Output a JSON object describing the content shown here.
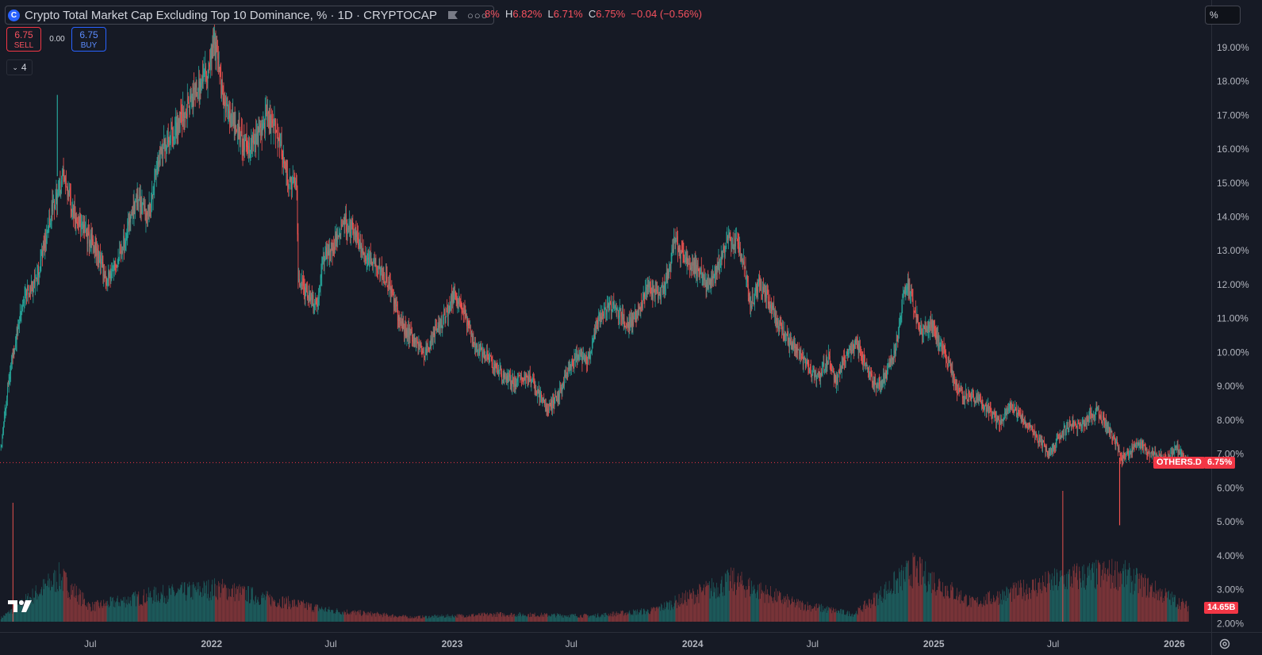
{
  "header": {
    "title": "Crypto Total Market Cap Excluding Top 10 Dominance, % · 1D · CRYPTOCAP",
    "logo_icon": "cryptocap-logo-icon",
    "ohlc_partial": "8%",
    "high_label": "H",
    "high": "6.82%",
    "low_label": "L",
    "low": "6.71%",
    "close_label": "C",
    "close": "6.75%",
    "change": "−0.04 (−0.56%)"
  },
  "trade": {
    "sell_price": "6.75",
    "sell_label": "SELL",
    "spread": "0.00",
    "buy_price": "6.75",
    "buy_label": "BUY"
  },
  "indicators_count": "4",
  "unit_button": "%",
  "last_price_tag": {
    "symbol": "OTHERS.D",
    "value": "6.75%"
  },
  "volume_tag": "14.65B",
  "colors": {
    "up": "#26a69a",
    "down": "#ef5350",
    "background": "#161a25",
    "last_price": "#f23645"
  },
  "chart_data": {
    "type": "candlestick",
    "symbol": "OTHERS.D",
    "title": "Crypto Total Market Cap Excluding Top 10 Dominance, %",
    "interval": "1D",
    "y_axis": {
      "ticks": [
        "2.00%",
        "3.00%",
        "4.00%",
        "5.00%",
        "6.00%",
        "7.00%",
        "8.00%",
        "9.00%",
        "10.00%",
        "11.00%",
        "12.00%",
        "13.00%",
        "14.00%",
        "15.00%",
        "16.00%",
        "17.00%",
        "18.00%",
        "19.00%"
      ],
      "ylim": [
        1.75,
        20.4
      ],
      "scale": "linear"
    },
    "x_axis": {
      "ticks": [
        "Jul",
        "2022",
        "Jul",
        "2023",
        "Jul",
        "2024",
        "Jul",
        "2025",
        "Jul",
        "2026"
      ],
      "range": [
        "2021-02-14",
        "2026-02-26"
      ]
    },
    "last_value": 6.75,
    "price_path": [
      {
        "date": "2021-02-15",
        "value": 7.2
      },
      {
        "date": "2021-03-01",
        "value": 9.5
      },
      {
        "date": "2021-03-20",
        "value": 11.5
      },
      {
        "date": "2021-04-10",
        "value": 12.2
      },
      {
        "date": "2021-05-01",
        "value": 14.0
      },
      {
        "date": "2021-05-20",
        "value": 15.2
      },
      {
        "date": "2021-06-05",
        "value": 14.2
      },
      {
        "date": "2021-06-20",
        "value": 13.6
      },
      {
        "date": "2021-07-10",
        "value": 13.0
      },
      {
        "date": "2021-07-25",
        "value": 12.1
      },
      {
        "date": "2021-08-10",
        "value": 12.6
      },
      {
        "date": "2021-08-25",
        "value": 13.6
      },
      {
        "date": "2021-09-10",
        "value": 14.5
      },
      {
        "date": "2021-09-25",
        "value": 14.0
      },
      {
        "date": "2021-10-10",
        "value": 15.5
      },
      {
        "date": "2021-10-25",
        "value": 16.3
      },
      {
        "date": "2021-11-10",
        "value": 16.7
      },
      {
        "date": "2021-11-25",
        "value": 17.2
      },
      {
        "date": "2021-12-10",
        "value": 17.8
      },
      {
        "date": "2021-12-25",
        "value": 18.3
      },
      {
        "date": "2022-01-05",
        "value": 19.3
      },
      {
        "date": "2022-01-20",
        "value": 17.2
      },
      {
        "date": "2022-02-05",
        "value": 16.8
      },
      {
        "date": "2022-02-20",
        "value": 16.0
      },
      {
        "date": "2022-03-10",
        "value": 16.3
      },
      {
        "date": "2022-03-25",
        "value": 16.9
      },
      {
        "date": "2022-04-10",
        "value": 16.5
      },
      {
        "date": "2022-04-28",
        "value": 15.0
      },
      {
        "date": "2022-05-10",
        "value": 14.9
      },
      {
        "date": "2022-05-12",
        "value": 12.2
      },
      {
        "date": "2022-05-25",
        "value": 11.8
      },
      {
        "date": "2022-06-10",
        "value": 11.4
      },
      {
        "date": "2022-06-20",
        "value": 12.9
      },
      {
        "date": "2022-07-05",
        "value": 13.1
      },
      {
        "date": "2022-07-20",
        "value": 13.9
      },
      {
        "date": "2022-08-05",
        "value": 13.5
      },
      {
        "date": "2022-08-20",
        "value": 12.9
      },
      {
        "date": "2022-09-05",
        "value": 12.7
      },
      {
        "date": "2022-09-25",
        "value": 12.1
      },
      {
        "date": "2022-10-15",
        "value": 10.8
      },
      {
        "date": "2022-11-05",
        "value": 10.4
      },
      {
        "date": "2022-11-20",
        "value": 9.9
      },
      {
        "date": "2022-12-05",
        "value": 10.6
      },
      {
        "date": "2022-12-20",
        "value": 11.0
      },
      {
        "date": "2023-01-05",
        "value": 11.8
      },
      {
        "date": "2023-01-20",
        "value": 11.1
      },
      {
        "date": "2023-02-05",
        "value": 10.2
      },
      {
        "date": "2023-02-25",
        "value": 9.8
      },
      {
        "date": "2023-03-15",
        "value": 9.4
      },
      {
        "date": "2023-04-05",
        "value": 9.1
      },
      {
        "date": "2023-04-25",
        "value": 9.3
      },
      {
        "date": "2023-05-10",
        "value": 8.9
      },
      {
        "date": "2023-05-25",
        "value": 8.3
      },
      {
        "date": "2023-06-10",
        "value": 8.7
      },
      {
        "date": "2023-06-25",
        "value": 9.4
      },
      {
        "date": "2023-07-10",
        "value": 9.9
      },
      {
        "date": "2023-07-25",
        "value": 9.7
      },
      {
        "date": "2023-08-10",
        "value": 10.9
      },
      {
        "date": "2023-08-25",
        "value": 11.4
      },
      {
        "date": "2023-09-10",
        "value": 11.2
      },
      {
        "date": "2023-09-25",
        "value": 10.8
      },
      {
        "date": "2023-10-10",
        "value": 11.2
      },
      {
        "date": "2023-10-25",
        "value": 11.9
      },
      {
        "date": "2023-11-10",
        "value": 11.6
      },
      {
        "date": "2023-11-25",
        "value": 12.3
      },
      {
        "date": "2023-12-05",
        "value": 13.4
      },
      {
        "date": "2023-12-15",
        "value": 12.8
      },
      {
        "date": "2024-01-05",
        "value": 12.5
      },
      {
        "date": "2024-01-25",
        "value": 12.0
      },
      {
        "date": "2024-02-10",
        "value": 12.6
      },
      {
        "date": "2024-02-25",
        "value": 13.4
      },
      {
        "date": "2024-03-10",
        "value": 13.1
      },
      {
        "date": "2024-03-20",
        "value": 12.5
      },
      {
        "date": "2024-03-28",
        "value": 11.4
      },
      {
        "date": "2024-04-10",
        "value": 12.0
      },
      {
        "date": "2024-04-25",
        "value": 11.6
      },
      {
        "date": "2024-05-10",
        "value": 10.8
      },
      {
        "date": "2024-05-25",
        "value": 10.3
      },
      {
        "date": "2024-06-10",
        "value": 10.1
      },
      {
        "date": "2024-06-25",
        "value": 9.5
      },
      {
        "date": "2024-07-10",
        "value": 9.3
      },
      {
        "date": "2024-07-25",
        "value": 9.8
      },
      {
        "date": "2024-08-05",
        "value": 9.1
      },
      {
        "date": "2024-08-20",
        "value": 9.9
      },
      {
        "date": "2024-09-05",
        "value": 10.3
      },
      {
        "date": "2024-09-20",
        "value": 9.6
      },
      {
        "date": "2024-10-05",
        "value": 9.0
      },
      {
        "date": "2024-10-20",
        "value": 9.3
      },
      {
        "date": "2024-11-05",
        "value": 10.2
      },
      {
        "date": "2024-11-15",
        "value": 11.6
      },
      {
        "date": "2024-11-22",
        "value": 12.1
      },
      {
        "date": "2024-12-05",
        "value": 11.0
      },
      {
        "date": "2024-12-15",
        "value": 10.6
      },
      {
        "date": "2024-12-28",
        "value": 10.9
      },
      {
        "date": "2025-01-10",
        "value": 10.2
      },
      {
        "date": "2025-01-25",
        "value": 9.6
      },
      {
        "date": "2025-02-05",
        "value": 8.9
      },
      {
        "date": "2025-02-20",
        "value": 8.7
      },
      {
        "date": "2025-03-10",
        "value": 8.6
      },
      {
        "date": "2025-03-25",
        "value": 8.3
      },
      {
        "date": "2025-04-10",
        "value": 7.9
      },
      {
        "date": "2025-04-25",
        "value": 8.4
      },
      {
        "date": "2025-05-10",
        "value": 8.2
      },
      {
        "date": "2025-05-25",
        "value": 7.8
      },
      {
        "date": "2025-06-10",
        "value": 7.4
      },
      {
        "date": "2025-06-25",
        "value": 7.0
      },
      {
        "date": "2025-07-10",
        "value": 7.5
      },
      {
        "date": "2025-07-25",
        "value": 7.9
      },
      {
        "date": "2025-08-10",
        "value": 7.8
      },
      {
        "date": "2025-08-25",
        "value": 8.1
      },
      {
        "date": "2025-09-05",
        "value": 8.3
      },
      {
        "date": "2025-09-20",
        "value": 7.8
      },
      {
        "date": "2025-10-05",
        "value": 7.3
      },
      {
        "date": "2025-10-12",
        "value": 6.9
      },
      {
        "date": "2025-10-25",
        "value": 7.0
      },
      {
        "date": "2025-11-05",
        "value": 7.4
      },
      {
        "date": "2025-11-20",
        "value": 7.1
      },
      {
        "date": "2025-12-05",
        "value": 6.9
      },
      {
        "date": "2025-12-20",
        "value": 6.8
      },
      {
        "date": "2026-01-05",
        "value": 7.2
      },
      {
        "date": "2026-01-15",
        "value": 6.9
      },
      {
        "date": "2026-01-22",
        "value": 6.75
      }
    ],
    "notable_wicks": [
      {
        "date": "2025-10-10",
        "low": 4.9
      },
      {
        "date": "2022-01-05",
        "high": 19.6
      },
      {
        "date": "2021-05-12",
        "high": 17.6
      }
    ],
    "volume": {
      "last": "14.65B",
      "envelope": [
        {
          "date": "2021-02-15",
          "level": 0.05
        },
        {
          "date": "2021-05-15",
          "level": 0.6
        },
        {
          "date": "2021-07-01",
          "level": 0.2
        },
        {
          "date": "2021-10-01",
          "level": 0.35
        },
        {
          "date": "2022-01-10",
          "level": 0.45
        },
        {
          "date": "2022-04-01",
          "level": 0.3
        },
        {
          "date": "2022-07-01",
          "level": 0.15
        },
        {
          "date": "2022-11-01",
          "level": 0.06
        },
        {
          "date": "2023-03-15",
          "level": 0.1
        },
        {
          "date": "2023-08-01",
          "level": 0.08
        },
        {
          "date": "2023-11-01",
          "level": 0.15
        },
        {
          "date": "2024-03-01",
          "level": 0.55
        },
        {
          "date": "2024-06-01",
          "level": 0.25
        },
        {
          "date": "2024-09-01",
          "level": 0.1
        },
        {
          "date": "2024-12-01",
          "level": 0.7
        },
        {
          "date": "2025-03-01",
          "level": 0.25
        },
        {
          "date": "2025-06-15",
          "level": 0.5
        },
        {
          "date": "2025-08-01",
          "level": 0.6
        },
        {
          "date": "2025-10-10",
          "level": 0.65
        },
        {
          "date": "2026-01-22",
          "level": 0.2
        }
      ],
      "spikes": [
        {
          "date": "2021-03-05",
          "level": 1.0
        },
        {
          "date": "2025-07-15",
          "level": 1.1
        }
      ]
    }
  }
}
